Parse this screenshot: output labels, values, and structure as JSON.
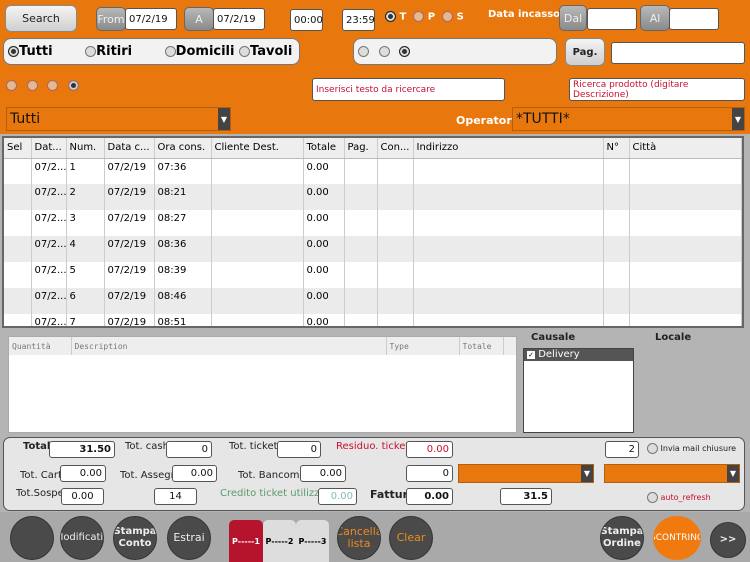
{
  "colors": {
    "accent": "#e8780e",
    "tab_active": "#b5142c"
  },
  "top": {
    "search": "Search",
    "from": "From",
    "from_date": "07/2/19",
    "a": "A",
    "a_date": "07/2/19",
    "time_from": "00:00",
    "time_to": "23:59",
    "tps": [
      {
        "label": "T",
        "on": true
      },
      {
        "label": "P",
        "on": false
      },
      {
        "label": "S",
        "on": false
      }
    ],
    "data_incasso": "Data incasso",
    "dal": "Dal",
    "al": "Al",
    "filters": [
      {
        "label": "Tutti",
        "on": true
      },
      {
        "label": "Ritiri",
        "on": false
      },
      {
        "label": "Domicili",
        "on": false
      },
      {
        "label": "Tavoli",
        "on": false
      }
    ],
    "pag": "Pag.",
    "search_text_placeholder": "Inserisci testo da ricercare",
    "product_search_placeholder": "Ricerca prodotto (digitare Descrizione)",
    "type_select": "Tutti",
    "operatore_label": "Operatore",
    "operatore_select": "*TUTTI*"
  },
  "orders": {
    "columns": [
      "Sel",
      "Dat...",
      "Num.",
      "Data c...",
      "Ora cons.",
      "Cliente Dest.",
      "Totale",
      "Pag.",
      "Con...",
      "Indirizzo",
      "N°",
      "Città"
    ],
    "rows": [
      [
        "",
        "07/2...",
        "1",
        "07/2/19",
        "07:36",
        "",
        "0.00",
        "",
        "",
        "",
        "",
        ""
      ],
      [
        "",
        "07/2...",
        "2",
        "07/2/19",
        "08:21",
        "",
        "0.00",
        "",
        "",
        "",
        "",
        ""
      ],
      [
        "",
        "07/2...",
        "3",
        "07/2/19",
        "08:27",
        "",
        "0.00",
        "",
        "",
        "",
        "",
        ""
      ],
      [
        "",
        "07/2...",
        "4",
        "07/2/19",
        "08:36",
        "",
        "0.00",
        "",
        "",
        "",
        "",
        ""
      ],
      [
        "",
        "07/2...",
        "5",
        "07/2/19",
        "08:39",
        "",
        "0.00",
        "",
        "",
        "",
        "",
        ""
      ],
      [
        "",
        "07/2...",
        "6",
        "07/2/19",
        "08:46",
        "",
        "0.00",
        "",
        "",
        "",
        "",
        ""
      ],
      [
        "",
        "07/2...",
        "7",
        "07/2/19",
        "08:51",
        "",
        "0.00",
        "",
        "",
        "",
        "",
        ""
      ]
    ]
  },
  "detail": {
    "columns": [
      "Quantità",
      "Description",
      "Type",
      "Totale"
    ]
  },
  "causale": {
    "label": "Causale",
    "items": [
      {
        "label": "Delivery",
        "checked": true
      }
    ]
  },
  "locale": {
    "label": "Locale"
  },
  "totals": {
    "total_label": "Total",
    "total": "31.50",
    "cash_label": "Tot. cash",
    "cash": "0",
    "ticket_label": "Tot. ticket",
    "ticket": "0",
    "residuo_label": "Residuo. ticket",
    "residuo": "0.00",
    "count2": "2",
    "invia_mail": "Invia mail chiusure",
    "carte_label": "Tot. Carte",
    "carte": "0.00",
    "assegni_label": "Tot. Assegni:",
    "assegni": "0.00",
    "bancomat_label": "Tot. Bancomat:",
    "bancomat": "0.00",
    "field0": "0",
    "sospes_label": "Tot.Sospes",
    "sospes": "0.00",
    "count14": "14",
    "credito_label": "Credito ticket utilizzato",
    "credito": "0.00",
    "fatture_label": "Fatture",
    "fatture": "0.00",
    "sum": "31.5",
    "auto_refresh": "auto_refresh"
  },
  "bottom": {
    "btn1": "",
    "modifica": "Modificatio",
    "stampa_conto": "Stampa Conto",
    "estrai": "Estrai",
    "tabs": [
      "P-----1",
      "P-----2",
      "P-----3"
    ],
    "cancella": "Cancella lista",
    "clear": "Clear",
    "stampa_ordine": "Stampa Ordine",
    "scontrino": "SCONTRINO",
    "next": ">>"
  }
}
